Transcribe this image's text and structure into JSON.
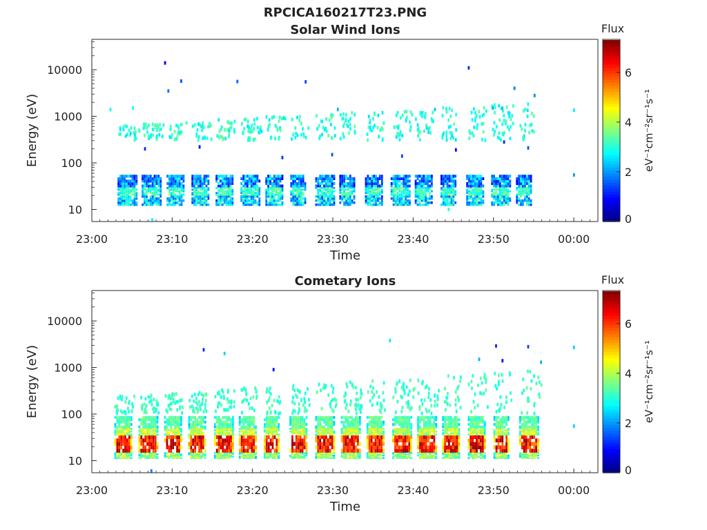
{
  "figure": {
    "title": "RPCICA160217T23.PNG"
  },
  "colormap": [
    "#00007f",
    "#0000ff",
    "#0080ff",
    "#00ffff",
    "#80ff80",
    "#ffff00",
    "#ff8000",
    "#ff0000",
    "#7f0000"
  ],
  "chart_data": [
    {
      "type": "heatmap",
      "title": "Solar Wind Ions",
      "xlabel": "Time",
      "ylabel": "Energy (eV)",
      "xlim": [
        "23:00",
        "00:03"
      ],
      "ylim_eV": [
        5.5,
        45000
      ],
      "yscale": "log",
      "x_ticks": [
        "23:00",
        "23:10",
        "23:20",
        "23:30",
        "23:40",
        "23:50",
        "00:00"
      ],
      "y_ticks": [
        "10",
        "100",
        "1000",
        "10000"
      ],
      "colorbar": {
        "label": "Flux",
        "unit": "eV⁻¹cm⁻²sr⁻¹s⁻¹",
        "range": [
          0,
          7.3
        ],
        "ticks": [
          "0",
          "2",
          "4",
          "6"
        ]
      },
      "burst_start_min": [
        3.2,
        6.2,
        9.3,
        12.4,
        15.4,
        18.5,
        21.6,
        24.7,
        27.8,
        30.8,
        34.0,
        37.2,
        40.2,
        43.4,
        46.6,
        49.7,
        52.8
      ],
      "burst_bands": [
        {
          "energy_eV": [
            12,
            20
          ],
          "flux": [
            1.5,
            3.5
          ]
        },
        {
          "energy_eV": [
            20,
            30
          ],
          "flux": [
            2.5,
            3.8
          ]
        },
        {
          "energy_eV": [
            30,
            55
          ],
          "flux": [
            1.0,
            3.0
          ]
        }
      ],
      "upper_band": {
        "energy_eV": [
          300,
          2000
        ],
        "flux": [
          2.5,
          3.5
        ]
      },
      "isolated": [
        {
          "t": 9.0,
          "e": 14000,
          "f": 0.8
        },
        {
          "t": 46.8,
          "e": 11000,
          "f": 1.2
        },
        {
          "t": 11.0,
          "e": 5700,
          "f": 1.5
        },
        {
          "t": 18.0,
          "e": 5600,
          "f": 1.6
        },
        {
          "t": 26.5,
          "e": 5500,
          "f": 1.4
        },
        {
          "t": 52.5,
          "e": 4000,
          "f": 1.8
        },
        {
          "t": 9.4,
          "e": 3500,
          "f": 1.7
        },
        {
          "t": 55.0,
          "e": 2800,
          "f": 1.9
        },
        {
          "t": 49.8,
          "e": 1500,
          "f": 2.2
        },
        {
          "t": 51.0,
          "e": 1500,
          "f": 2.4
        },
        {
          "t": 59.9,
          "e": 1350,
          "f": 2.6
        },
        {
          "t": 2.2,
          "e": 1400,
          "f": 2.8
        },
        {
          "t": 5.0,
          "e": 1500,
          "f": 2.8
        },
        {
          "t": 30.5,
          "e": 1400,
          "f": 2.2
        },
        {
          "t": 42.6,
          "e": 1400,
          "f": 2.3
        },
        {
          "t": 59.9,
          "e": 55,
          "f": 2.0
        },
        {
          "t": 6.5,
          "e": 200,
          "f": 1.2
        },
        {
          "t": 13.3,
          "e": 220,
          "f": 1.0
        },
        {
          "t": 23.6,
          "e": 130,
          "f": 1.3
        },
        {
          "t": 29.8,
          "e": 150,
          "f": 1.5
        },
        {
          "t": 38.5,
          "e": 140,
          "f": 1.4
        },
        {
          "t": 45.2,
          "e": 190,
          "f": 0.9
        },
        {
          "t": 51.2,
          "e": 280,
          "f": 1.2
        },
        {
          "t": 54.2,
          "e": 210,
          "f": 1.5
        },
        {
          "t": 7.4,
          "e": 6,
          "f": 2.8
        },
        {
          "t": 44.3,
          "e": 10,
          "f": 3.0
        }
      ]
    },
    {
      "type": "heatmap",
      "title": "Cometary Ions",
      "xlabel": "Time",
      "ylabel": "Energy (eV)",
      "xlim": [
        "23:00",
        "00:03"
      ],
      "ylim_eV": [
        5.5,
        45000
      ],
      "yscale": "log",
      "x_ticks": [
        "23:00",
        "23:10",
        "23:20",
        "23:30",
        "23:40",
        "23:50",
        "00:00"
      ],
      "y_ticks": [
        "10",
        "100",
        "1000",
        "10000"
      ],
      "colorbar": {
        "label": "Flux",
        "unit": "eV⁻¹cm⁻²sr⁻¹s⁻¹",
        "range": [
          0,
          7.3
        ],
        "ticks": [
          "0",
          "2",
          "4",
          "6"
        ]
      },
      "burst_start_min": [
        2.8,
        5.8,
        9.0,
        12.0,
        15.2,
        18.3,
        21.4,
        24.6,
        27.8,
        31.0,
        34.2,
        37.4,
        40.5,
        43.6,
        46.8,
        50.0,
        53.2
      ],
      "burst_bands": [
        {
          "energy_eV": [
            11,
            15
          ],
          "flux": [
            3.0,
            4.5
          ]
        },
        {
          "energy_eV": [
            15,
            35
          ],
          "flux": [
            5.5,
            7.2
          ]
        },
        {
          "energy_eV": [
            35,
            50
          ],
          "flux": [
            3.5,
            4.8
          ]
        },
        {
          "energy_eV": [
            50,
            90
          ],
          "flux": [
            3.0,
            3.8
          ]
        }
      ],
      "upper_band": {
        "energy_eV": [
          100,
          900
        ],
        "flux": [
          2.8,
          3.5
        ]
      },
      "isolated": [
        {
          "t": 37.0,
          "e": 3800,
          "f": 2.6
        },
        {
          "t": 13.8,
          "e": 2400,
          "f": 1.2
        },
        {
          "t": 16.4,
          "e": 2000,
          "f": 2.4
        },
        {
          "t": 50.2,
          "e": 2900,
          "f": 1.2
        },
        {
          "t": 54.2,
          "e": 2800,
          "f": 1.4
        },
        {
          "t": 59.9,
          "e": 2700,
          "f": 2.4
        },
        {
          "t": 22.5,
          "e": 900,
          "f": 1.0
        },
        {
          "t": 51.0,
          "e": 1400,
          "f": 1.0
        },
        {
          "t": 55.8,
          "e": 1300,
          "f": 2.2
        },
        {
          "t": 48.1,
          "e": 1500,
          "f": 2.2
        },
        {
          "t": 59.9,
          "e": 55,
          "f": 2.4
        },
        {
          "t": 7.3,
          "e": 6,
          "f": 1.8
        }
      ]
    }
  ]
}
